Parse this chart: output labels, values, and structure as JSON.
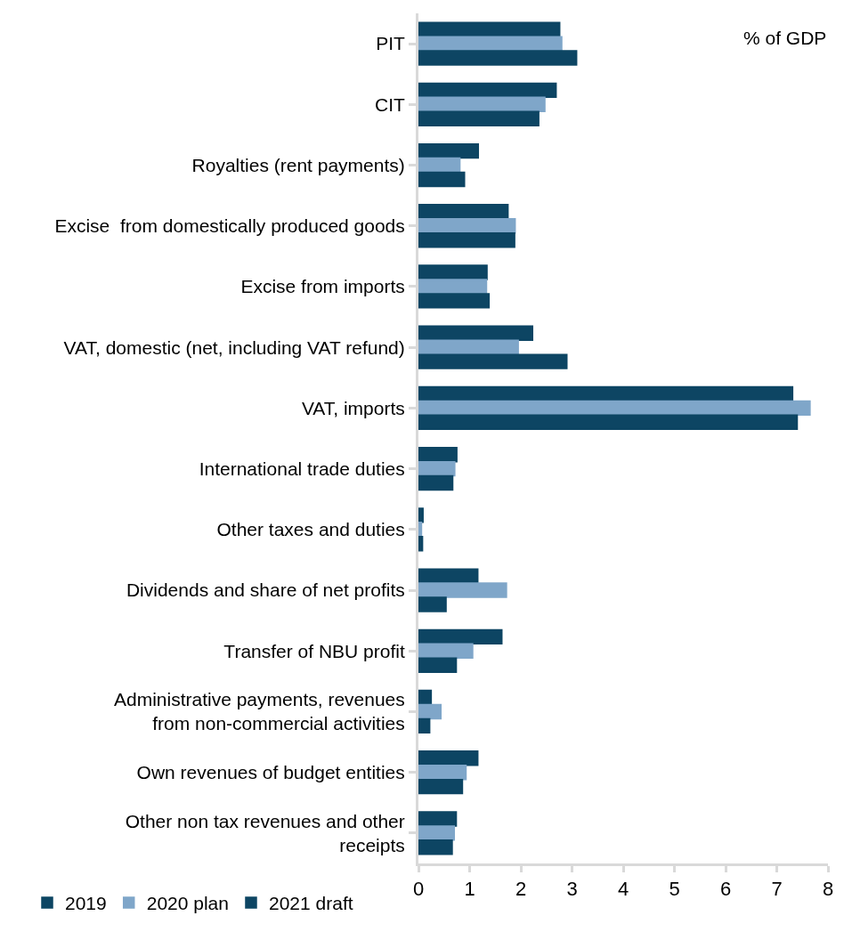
{
  "chart_data": {
    "type": "bar",
    "orientation": "horizontal",
    "categories": [
      "PIT",
      "CIT",
      "Royalties (rent payments)",
      "Excise  from domestically produced goods",
      "Excise from imports",
      "VAT, domestic (net, including VAT refund)",
      "VAT, imports",
      "International trade duties",
      "Other taxes and duties",
      "Dividends and share of net profits",
      "Transfer of NBU profit",
      "Administrative payments, revenues\nfrom non-commercial activities",
      "Own revenues of budget entities",
      "Other non tax revenues and other\nreceipts"
    ],
    "series": [
      {
        "name": "2019",
        "color": "#0d4563",
        "values": [
          2.76,
          2.69,
          1.17,
          1.75,
          1.34,
          2.23,
          7.31,
          0.75,
          0.09,
          1.16,
          1.63,
          0.25,
          1.16,
          0.74
        ]
      },
      {
        "name": "2020 plan",
        "color": "#7fa6c9",
        "values": [
          2.8,
          2.47,
          0.81,
          1.89,
          1.33,
          1.95,
          7.65,
          0.71,
          0.06,
          1.72,
          1.06,
          0.44,
          0.93,
          0.7
        ]
      },
      {
        "name": "2021 draft",
        "color": "#0d4563",
        "values": [
          3.09,
          2.35,
          0.9,
          1.88,
          1.38,
          2.9,
          7.4,
          0.67,
          0.08,
          0.54,
          0.74,
          0.22,
          0.86,
          0.66
        ]
      }
    ],
    "xlim": [
      0,
      8
    ],
    "xticks": [
      0,
      1,
      2,
      3,
      4,
      5,
      6,
      7,
      8
    ],
    "annotations": [
      "% of GDP"
    ],
    "legend": "bottom left"
  }
}
